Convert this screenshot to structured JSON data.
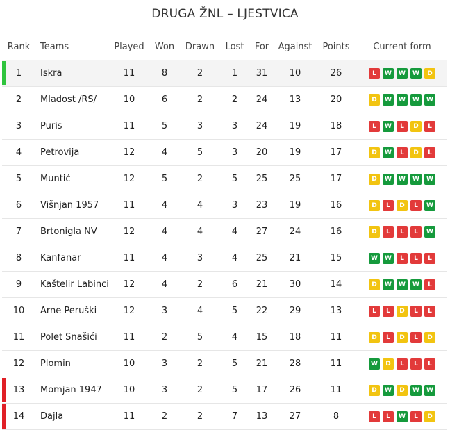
{
  "title": "DRUGA ŽNL – LJESTVICA",
  "colors": {
    "promotion": "#2fc43d",
    "relegation": "#e01f26",
    "win": "#159a3c",
    "draw": "#f2c411",
    "loss": "#e23a3a"
  },
  "headers": {
    "rank": "Rank",
    "teams": "Teams",
    "played": "Played",
    "won": "Won",
    "drawn": "Drawn",
    "lost": "Lost",
    "for": "For",
    "against": "Against",
    "points": "Points",
    "form": "Current form"
  },
  "rows": [
    {
      "rank": "1",
      "team": "Iskra",
      "played": "11",
      "won": "8",
      "drawn": "2",
      "lost": "1",
      "for": "31",
      "against": "10",
      "points": "26",
      "form": [
        "L",
        "W",
        "W",
        "W",
        "D"
      ],
      "marker": "promotion"
    },
    {
      "rank": "2",
      "team": "Mladost /RS/",
      "played": "10",
      "won": "6",
      "drawn": "2",
      "lost": "2",
      "for": "24",
      "against": "13",
      "points": "20",
      "form": [
        "D",
        "W",
        "W",
        "W",
        "W"
      ],
      "marker": ""
    },
    {
      "rank": "3",
      "team": "Puris",
      "played": "11",
      "won": "5",
      "drawn": "3",
      "lost": "3",
      "for": "24",
      "against": "19",
      "points": "18",
      "form": [
        "L",
        "W",
        "L",
        "D",
        "L"
      ],
      "marker": ""
    },
    {
      "rank": "4",
      "team": "Petrovija",
      "played": "12",
      "won": "4",
      "drawn": "5",
      "lost": "3",
      "for": "20",
      "against": "19",
      "points": "17",
      "form": [
        "D",
        "W",
        "L",
        "D",
        "L"
      ],
      "marker": ""
    },
    {
      "rank": "5",
      "team": "Muntić",
      "played": "12",
      "won": "5",
      "drawn": "2",
      "lost": "5",
      "for": "25",
      "against": "25",
      "points": "17",
      "form": [
        "D",
        "W",
        "W",
        "W",
        "W"
      ],
      "marker": ""
    },
    {
      "rank": "6",
      "team": "Višnjan 1957",
      "played": "11",
      "won": "4",
      "drawn": "4",
      "lost": "3",
      "for": "23",
      "against": "19",
      "points": "16",
      "form": [
        "D",
        "L",
        "D",
        "L",
        "W"
      ],
      "marker": ""
    },
    {
      "rank": "7",
      "team": "Brtonigla NV",
      "played": "12",
      "won": "4",
      "drawn": "4",
      "lost": "4",
      "for": "27",
      "against": "24",
      "points": "16",
      "form": [
        "D",
        "L",
        "L",
        "L",
        "W"
      ],
      "marker": ""
    },
    {
      "rank": "8",
      "team": "Kanfanar",
      "played": "11",
      "won": "4",
      "drawn": "3",
      "lost": "4",
      "for": "25",
      "against": "21",
      "points": "15",
      "form": [
        "W",
        "W",
        "L",
        "L",
        "L"
      ],
      "marker": ""
    },
    {
      "rank": "9",
      "team": "Kaštelir Labinci",
      "played": "12",
      "won": "4",
      "drawn": "2",
      "lost": "6",
      "for": "21",
      "against": "30",
      "points": "14",
      "form": [
        "D",
        "W",
        "W",
        "W",
        "L"
      ],
      "marker": ""
    },
    {
      "rank": "10",
      "team": "Arne Peruški",
      "played": "12",
      "won": "3",
      "drawn": "4",
      "lost": "5",
      "for": "22",
      "against": "29",
      "points": "13",
      "form": [
        "L",
        "L",
        "D",
        "L",
        "L"
      ],
      "marker": ""
    },
    {
      "rank": "11",
      "team": "Polet Snašići",
      "played": "11",
      "won": "2",
      "drawn": "5",
      "lost": "4",
      "for": "15",
      "against": "18",
      "points": "11",
      "form": [
        "D",
        "L",
        "D",
        "L",
        "D"
      ],
      "marker": ""
    },
    {
      "rank": "12",
      "team": "Plomin",
      "played": "10",
      "won": "3",
      "drawn": "2",
      "lost": "5",
      "for": "21",
      "against": "28",
      "points": "11",
      "form": [
        "W",
        "D",
        "L",
        "L",
        "L"
      ],
      "marker": ""
    },
    {
      "rank": "13",
      "team": "Momjan 1947",
      "played": "10",
      "won": "3",
      "drawn": "2",
      "lost": "5",
      "for": "17",
      "against": "26",
      "points": "11",
      "form": [
        "D",
        "W",
        "D",
        "W",
        "W"
      ],
      "marker": "relegation"
    },
    {
      "rank": "14",
      "team": "Dajla",
      "played": "11",
      "won": "2",
      "drawn": "2",
      "lost": "7",
      "for": "13",
      "against": "27",
      "points": "8",
      "form": [
        "L",
        "L",
        "W",
        "L",
        "D"
      ],
      "marker": "relegation"
    }
  ]
}
